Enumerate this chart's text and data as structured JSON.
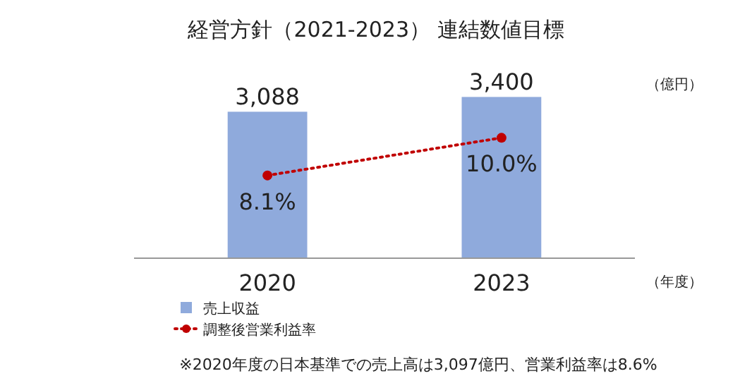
{
  "chart_data": {
    "type": "bar",
    "title": "経営方針（2021-2023） 連結数値目標",
    "categories": [
      "2020",
      "2023"
    ],
    "series": [
      {
        "name": "売上収益",
        "color": "#8faadc",
        "values": [
          3088,
          3400
        ],
        "value_labels": [
          "3,088",
          "3,400"
        ]
      },
      {
        "type": "line",
        "name": "調整後営業利益率",
        "color": "#c00000",
        "values": [
          8.1,
          10.0
        ],
        "value_labels": [
          "8.1%",
          "10.0%"
        ],
        "axis": "y2",
        "marker": "circle",
        "line_style": "dotted"
      }
    ],
    "tick_labels": "x",
    "legend": "bottom left",
    "annotations": [
      "（億円）",
      "（年度）",
      "※2020年度の日本基準での売上高は3,097億円、営業利益率は8.6%"
    ]
  }
}
